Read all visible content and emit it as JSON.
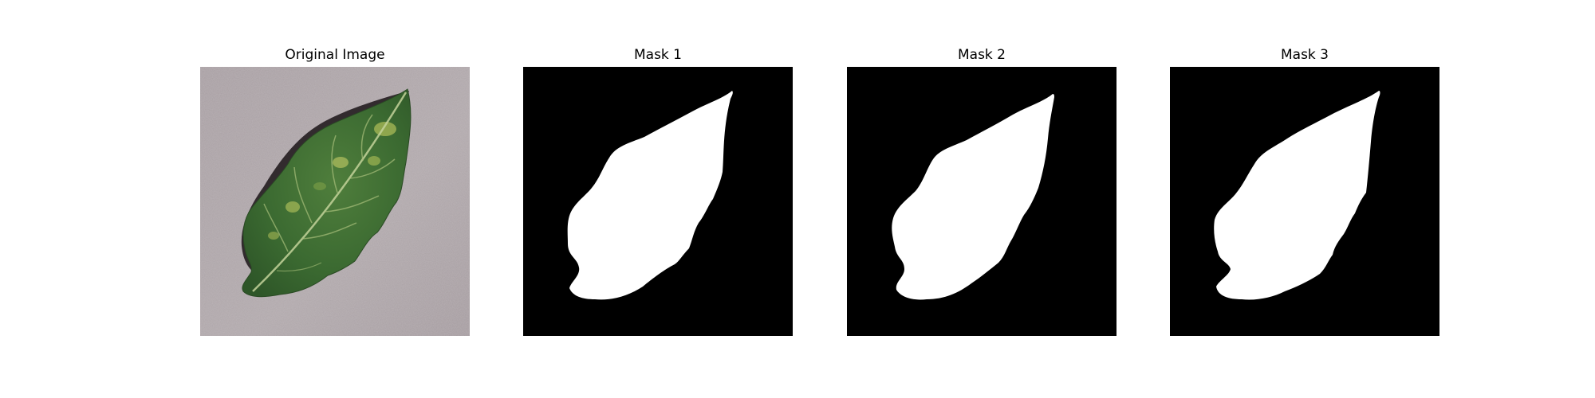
{
  "panels": [
    {
      "title": "Original Image",
      "content": "photo of a green tomato leaf with yellow spots on a gray textured surface"
    },
    {
      "title": "Mask 1",
      "content": "binary mask: white leaf silhouette on black"
    },
    {
      "title": "Mask 2",
      "content": "binary mask: white leaf silhouette on black"
    },
    {
      "title": "Mask 3",
      "content": "binary mask: white leaf silhouette on black"
    }
  ],
  "colors": {
    "mask_background": "#000000",
    "mask_foreground": "#ffffff",
    "photo_background": "#a89fa3",
    "leaf_green": "#3e6b35",
    "leaf_highlight": "#9fb552",
    "shadow": "#1e1a1c"
  }
}
